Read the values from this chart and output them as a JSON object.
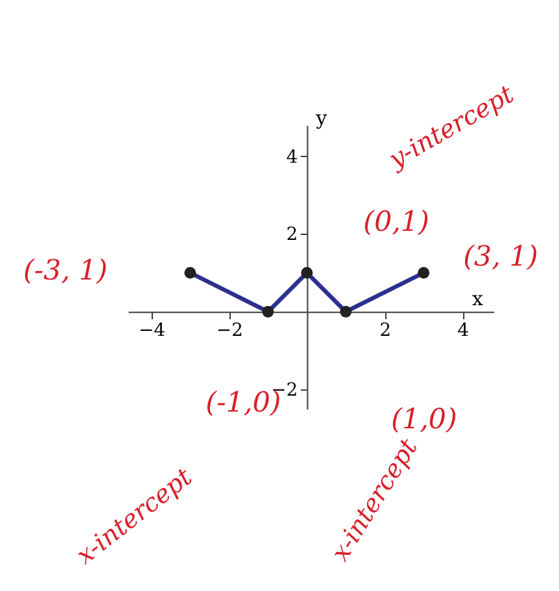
{
  "chart_data": {
    "type": "line",
    "xlabel": "x",
    "ylabel": "y",
    "x": [
      -3,
      -1,
      0,
      1,
      3
    ],
    "series": [
      {
        "color": "#2b2f8f",
        "values": [
          1,
          0,
          1,
          0,
          1
        ]
      }
    ],
    "xlim": [
      -4.6,
      4.8
    ],
    "ylim": [
      -2.5,
      4.8
    ],
    "xticks": [
      -4,
      -2,
      2,
      4
    ],
    "yticks": [
      -2,
      2,
      4
    ],
    "grid": false,
    "marker": "circle",
    "line_style": "solid",
    "annotations": [
      "(-3, 1)",
      "(0,1)",
      "(3, 1)",
      "(-1,0)",
      "(1,0)",
      "y-intercept",
      "x-intercept",
      "x-intercept"
    ]
  }
}
